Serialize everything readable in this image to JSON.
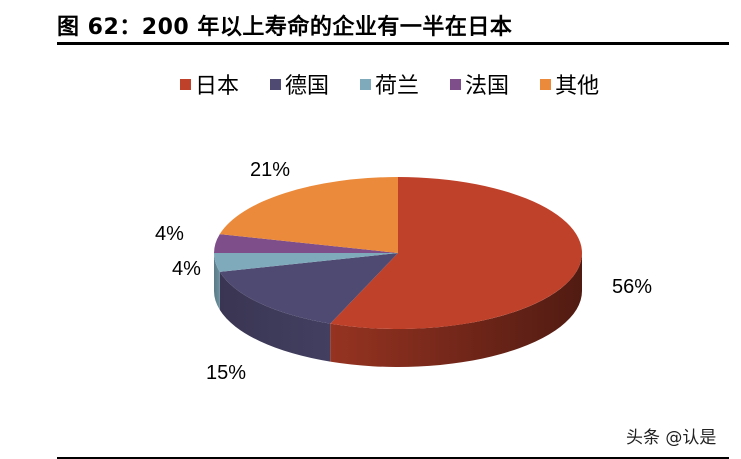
{
  "header": {
    "title": "图 62：200 年以上寿命的企业有一半在日本"
  },
  "legend": {
    "items": [
      {
        "label": "日本",
        "color": "#C0412A"
      },
      {
        "label": "德国",
        "color": "#4F4A72"
      },
      {
        "label": "荷兰",
        "color": "#7FAABB"
      },
      {
        "label": "法国",
        "color": "#7D4E8A"
      },
      {
        "label": "其他",
        "color": "#EB8A3A"
      }
    ]
  },
  "labels": {
    "japan": "56%",
    "germany": "15%",
    "netherlands": "4%",
    "france": "4%",
    "other": "21%"
  },
  "watermark": "头条 @认是",
  "chart_data": {
    "type": "pie",
    "style": "3d",
    "title": "图 62：200 年以上寿命的企业有一半在日本",
    "categories": [
      "日本",
      "德国",
      "荷兰",
      "法国",
      "其他"
    ],
    "values": [
      56,
      15,
      4,
      4,
      21
    ],
    "unit": "%",
    "colors": [
      "#C0412A",
      "#4F4A72",
      "#7FAABB",
      "#7D4E8A",
      "#EB8A3A"
    ],
    "start_angle": "12 o'clock, clockwise",
    "legend_position": "top",
    "data_labels": [
      "56%",
      "15%",
      "4%",
      "4%",
      "21%"
    ]
  }
}
